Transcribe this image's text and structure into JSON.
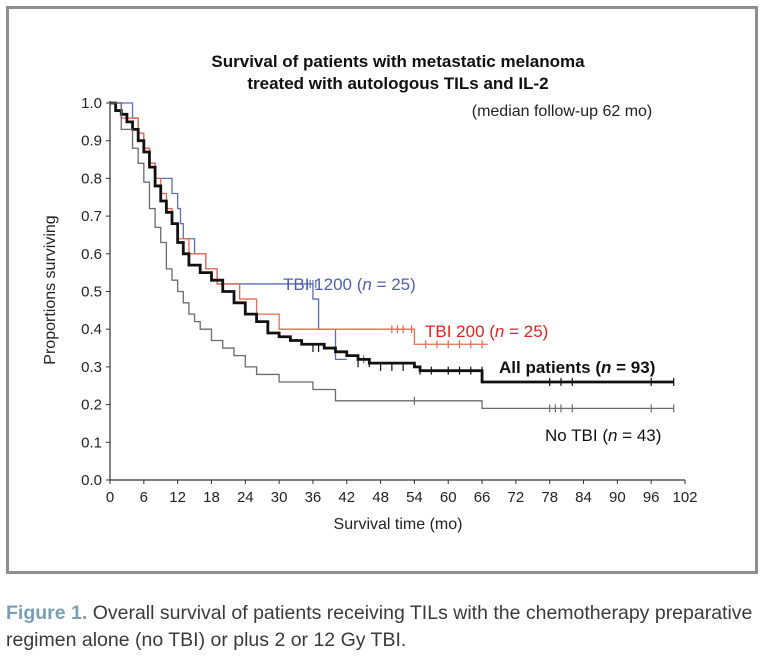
{
  "caption": {
    "figure_label": "Figure 1.",
    "text": " Overall survival of patients receiving TILs with the chemotherapy preparative regimen alone (no TBI) or plus 2 or 12 Gy TBI."
  },
  "chart_data": {
    "type": "line",
    "title_lines": [
      "Survival of patients with metastatic melanoma",
      "treated with autologous TILs and IL-2"
    ],
    "subtitle": "(median follow-up 62 mo)",
    "xlabel": "Survival time (mo)",
    "ylabel": "Proportions surviving",
    "xlim": [
      0,
      102
    ],
    "ylim": [
      0,
      1
    ],
    "xticks": [
      0,
      6,
      12,
      18,
      24,
      30,
      36,
      42,
      48,
      54,
      60,
      66,
      72,
      78,
      84,
      90,
      96,
      102
    ],
    "yticks": [
      "0.0",
      "0.1",
      "0.2",
      "0.3",
      "0.4",
      "0.5",
      "0.6",
      "0.7",
      "0.8",
      "0.9",
      "1.0"
    ],
    "series": [
      {
        "name": "TBI 1200",
        "label_main": "TBI 1200 (",
        "label_n": "n",
        "label_rest": " = 25)",
        "color": "#5b6fb8",
        "steps": [
          [
            0,
            1.0
          ],
          [
            4,
            0.96
          ],
          [
            5,
            0.92
          ],
          [
            6,
            0.88
          ],
          [
            7,
            0.84
          ],
          [
            8,
            0.8
          ],
          [
            11,
            0.76
          ],
          [
            12,
            0.72
          ],
          [
            12.5,
            0.68
          ],
          [
            13,
            0.64
          ],
          [
            15,
            0.6
          ],
          [
            17,
            0.56
          ],
          [
            19,
            0.52
          ],
          [
            36,
            0.48
          ],
          [
            37,
            0.4
          ],
          [
            40,
            0.32
          ],
          [
            42,
            0.32
          ]
        ],
        "censor": [
          [
            35,
            0.52
          ],
          [
            35.5,
            0.52
          ],
          [
            36,
            0.52
          ],
          [
            36.5,
            0.52
          ],
          [
            45,
            0.32
          ]
        ]
      },
      {
        "name": "TBI 200",
        "label_main": "TBI 200 (",
        "label_n": "n",
        "label_rest": " = 25)",
        "color": "#e86a4e",
        "steps": [
          [
            0,
            1.0
          ],
          [
            2,
            0.96
          ],
          [
            5,
            0.92
          ],
          [
            6,
            0.88
          ],
          [
            7,
            0.84
          ],
          [
            8,
            0.8
          ],
          [
            9,
            0.76
          ],
          [
            10,
            0.72
          ],
          [
            11,
            0.68
          ],
          [
            12,
            0.64
          ],
          [
            14,
            0.6
          ],
          [
            17,
            0.56
          ],
          [
            19,
            0.52
          ],
          [
            23,
            0.48
          ],
          [
            26,
            0.44
          ],
          [
            30,
            0.4
          ],
          [
            54,
            0.36
          ],
          [
            67,
            0.36
          ]
        ],
        "censor": [
          [
            50,
            0.4
          ],
          [
            51,
            0.4
          ],
          [
            52,
            0.4
          ],
          [
            53.5,
            0.4
          ],
          [
            56,
            0.36
          ],
          [
            58,
            0.36
          ],
          [
            60,
            0.36
          ],
          [
            62,
            0.36
          ],
          [
            64,
            0.36
          ],
          [
            66,
            0.36
          ]
        ]
      },
      {
        "name": "All patients",
        "label_main": "All patients (",
        "label_n": "n",
        "label_rest": " = 93)",
        "color": "#111111",
        "bold": true,
        "steps": [
          [
            0,
            1.0
          ],
          [
            1,
            0.98
          ],
          [
            2,
            0.97
          ],
          [
            3,
            0.95
          ],
          [
            4,
            0.93
          ],
          [
            5,
            0.9
          ],
          [
            6,
            0.87
          ],
          [
            7,
            0.83
          ],
          [
            8,
            0.78
          ],
          [
            9,
            0.74
          ],
          [
            10,
            0.71
          ],
          [
            11,
            0.68
          ],
          [
            12,
            0.63
          ],
          [
            13,
            0.6
          ],
          [
            14,
            0.57
          ],
          [
            16,
            0.55
          ],
          [
            18,
            0.53
          ],
          [
            20,
            0.5
          ],
          [
            22,
            0.47
          ],
          [
            24,
            0.44
          ],
          [
            26,
            0.42
          ],
          [
            28,
            0.39
          ],
          [
            30,
            0.38
          ],
          [
            32,
            0.37
          ],
          [
            34,
            0.36
          ],
          [
            38,
            0.35
          ],
          [
            40,
            0.34
          ],
          [
            42,
            0.33
          ],
          [
            44,
            0.32
          ],
          [
            46,
            0.31
          ],
          [
            54,
            0.3
          ],
          [
            55,
            0.29
          ],
          [
            66,
            0.26
          ],
          [
            100,
            0.26
          ]
        ],
        "censor": [
          [
            36,
            0.35
          ],
          [
            37,
            0.35
          ],
          [
            44,
            0.31
          ],
          [
            46,
            0.31
          ],
          [
            48,
            0.3
          ],
          [
            50,
            0.3
          ],
          [
            52,
            0.3
          ],
          [
            55,
            0.29
          ],
          [
            57,
            0.29
          ],
          [
            60,
            0.29
          ],
          [
            62,
            0.29
          ],
          [
            64,
            0.29
          ],
          [
            66,
            0.29
          ],
          [
            78,
            0.26
          ],
          [
            80,
            0.26
          ],
          [
            82,
            0.26
          ],
          [
            96,
            0.26
          ],
          [
            100,
            0.26
          ]
        ]
      },
      {
        "name": "No TBI",
        "label_main": "No TBI (",
        "label_n": "n",
        "label_rest": " = 43)",
        "color": "#6b6b6b",
        "steps": [
          [
            0,
            1.0
          ],
          [
            2,
            0.93
          ],
          [
            4,
            0.88
          ],
          [
            5,
            0.84
          ],
          [
            6,
            0.79
          ],
          [
            7,
            0.72
          ],
          [
            8,
            0.67
          ],
          [
            9,
            0.63
          ],
          [
            10,
            0.56
          ],
          [
            11,
            0.53
          ],
          [
            12,
            0.5
          ],
          [
            13,
            0.47
          ],
          [
            14,
            0.44
          ],
          [
            15,
            0.42
          ],
          [
            16,
            0.4
          ],
          [
            18,
            0.37
          ],
          [
            20,
            0.35
          ],
          [
            22,
            0.33
          ],
          [
            24,
            0.3
          ],
          [
            26,
            0.28
          ],
          [
            30,
            0.26
          ],
          [
            36,
            0.24
          ],
          [
            40,
            0.21
          ],
          [
            54,
            0.21
          ],
          [
            66,
            0.19
          ],
          [
            100,
            0.19
          ]
        ],
        "censor": [
          [
            54,
            0.21
          ],
          [
            78,
            0.19
          ],
          [
            79,
            0.19
          ],
          [
            80,
            0.19
          ],
          [
            82,
            0.19
          ],
          [
            96,
            0.19
          ],
          [
            100,
            0.19
          ]
        ]
      }
    ]
  }
}
